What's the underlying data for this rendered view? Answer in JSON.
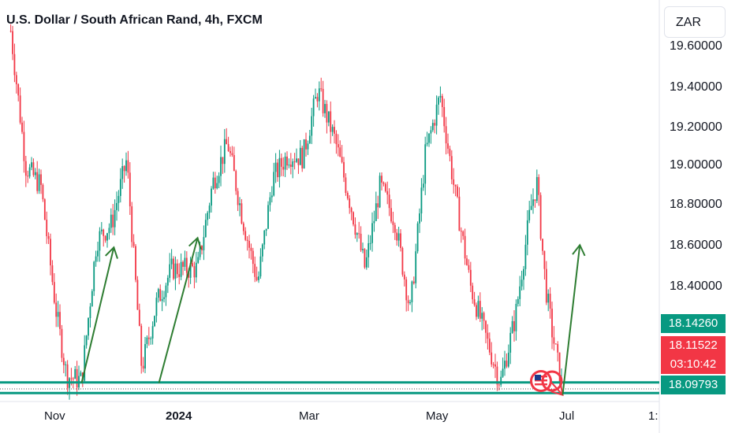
{
  "title": "U.S. Dollar / South African Rand, 4h, FXCM",
  "currency_button": "ZAR",
  "y_ticks": [
    "19.60000",
    "19.40000",
    "19.20000",
    "19.00000",
    "18.80000",
    "18.60000",
    "18.40000"
  ],
  "x_ticks": [
    "Nov",
    "2024",
    "Mar",
    "May",
    "Jul",
    "1:"
  ],
  "price_tags": {
    "upper_line": "18.14260",
    "last_price": "18.11522",
    "countdown": "03:10:42",
    "lower_line": "18.09793"
  },
  "colors": {
    "up": "#089981",
    "down": "#f23645",
    "support_lines": "#089981",
    "arrows": "#2e7d32",
    "red_arrow": "#f23645"
  },
  "icons": [
    "us-flag-icon",
    "currency-event-icon"
  ],
  "chart_data": {
    "type": "candlestick",
    "title": "U.S. Dollar / South African Rand, 4h, FXCM",
    "ylim": [
      17.93,
      19.75
    ],
    "support_levels": [
      18.1426,
      18.09793
    ],
    "last_price": 18.11522,
    "path_points": [
      {
        "x": "2023-10-06",
        "y": 19.62
      },
      {
        "x": "2023-10-13",
        "y": 19.05
      },
      {
        "x": "2023-10-20",
        "y": 18.97
      },
      {
        "x": "2023-10-27",
        "y": 18.45
      },
      {
        "x": "2023-11-01",
        "y": 18.17
      },
      {
        "x": "2023-11-08",
        "y": 18.15
      },
      {
        "x": "2023-11-15",
        "y": 18.74
      },
      {
        "x": "2023-11-22",
        "y": 18.81
      },
      {
        "x": "2023-11-29",
        "y": 19.08
      },
      {
        "x": "2023-12-06",
        "y": 18.2
      },
      {
        "x": "2023-12-13",
        "y": 18.48
      },
      {
        "x": "2023-12-20",
        "y": 18.62
      },
      {
        "x": "2024-01-01",
        "y": 18.62
      },
      {
        "x": "2024-01-08",
        "y": 18.98
      },
      {
        "x": "2024-01-15",
        "y": 19.15
      },
      {
        "x": "2024-01-22",
        "y": 18.83
      },
      {
        "x": "2024-01-29",
        "y": 18.56
      },
      {
        "x": "2024-02-05",
        "y": 19.0
      },
      {
        "x": "2024-02-12",
        "y": 19.1
      },
      {
        "x": "2024-02-19",
        "y": 19.09
      },
      {
        "x": "2024-02-26",
        "y": 19.37
      },
      {
        "x": "2024-03-05",
        "y": 19.16
      },
      {
        "x": "2024-03-12",
        "y": 18.9
      },
      {
        "x": "2024-03-19",
        "y": 18.62
      },
      {
        "x": "2024-03-26",
        "y": 18.97
      },
      {
        "x": "2024-04-02",
        "y": 18.82
      },
      {
        "x": "2024-04-09",
        "y": 18.44
      },
      {
        "x": "2024-04-16",
        "y": 19.1
      },
      {
        "x": "2024-04-23",
        "y": 19.35
      },
      {
        "x": "2024-04-30",
        "y": 18.93
      },
      {
        "x": "2024-05-07",
        "y": 18.55
      },
      {
        "x": "2024-05-14",
        "y": 18.34
      },
      {
        "x": "2024-05-21",
        "y": 18.14
      },
      {
        "x": "2024-05-28",
        "y": 18.42
      },
      {
        "x": "2024-06-04",
        "y": 18.87
      },
      {
        "x": "2024-06-07",
        "y": 18.98
      },
      {
        "x": "2024-06-11",
        "y": 18.55
      },
      {
        "x": "2024-06-14",
        "y": 18.36
      },
      {
        "x": "2024-06-19",
        "y": 18.11
      }
    ],
    "annotations": [
      {
        "type": "arrow",
        "color": "green",
        "from": {
          "x": "2023-11-08",
          "y": 18.14
        },
        "to": {
          "x": "2023-11-23",
          "y": 18.71
        }
      },
      {
        "type": "arrow",
        "color": "green",
        "from": {
          "x": "2023-12-14",
          "y": 18.14
        },
        "to": {
          "x": "2024-01-01",
          "y": 18.75
        }
      },
      {
        "type": "arrow",
        "color": "red",
        "from": {
          "x": "2024-06-14",
          "y": 18.14
        },
        "to": {
          "x": "2024-06-19",
          "y": 18.09
        }
      },
      {
        "type": "arrow",
        "color": "green",
        "from": {
          "x": "2024-06-19",
          "y": 18.09
        },
        "to": {
          "x": "2024-06-27",
          "y": 18.72
        }
      }
    ]
  }
}
